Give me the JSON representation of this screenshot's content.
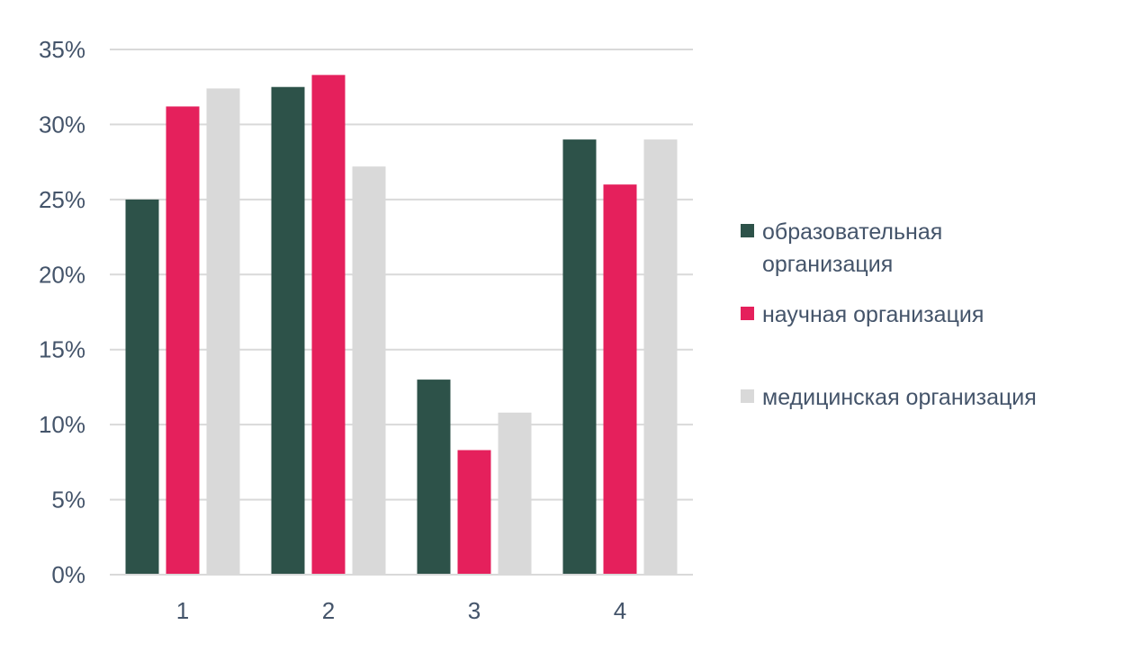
{
  "chart_data": {
    "type": "bar",
    "categories": [
      "1",
      "2",
      "3",
      "4"
    ],
    "series": [
      {
        "name": "образовательная организация",
        "color": "#2d5249",
        "values": [
          25,
          32.5,
          13,
          29
        ]
      },
      {
        "name": "научная организация",
        "color": "#e5205c",
        "values": [
          31.2,
          33.3,
          8.3,
          26
        ]
      },
      {
        "name": "медицинская организация",
        "color": "#d9d9d9",
        "values": [
          32.4,
          27.2,
          10.8,
          29
        ]
      }
    ],
    "ylim": [
      0,
      35
    ],
    "y_ticks": [
      0,
      5,
      10,
      15,
      20,
      25,
      30,
      35
    ],
    "y_tick_suffix": "%",
    "grid": true,
    "legend_position": "right",
    "legend_lines": [
      [
        "образовательная",
        "организация"
      ],
      [
        "научная организация"
      ],
      [
        "медицинская организация"
      ]
    ],
    "title": "",
    "xlabel": "",
    "ylabel": ""
  }
}
